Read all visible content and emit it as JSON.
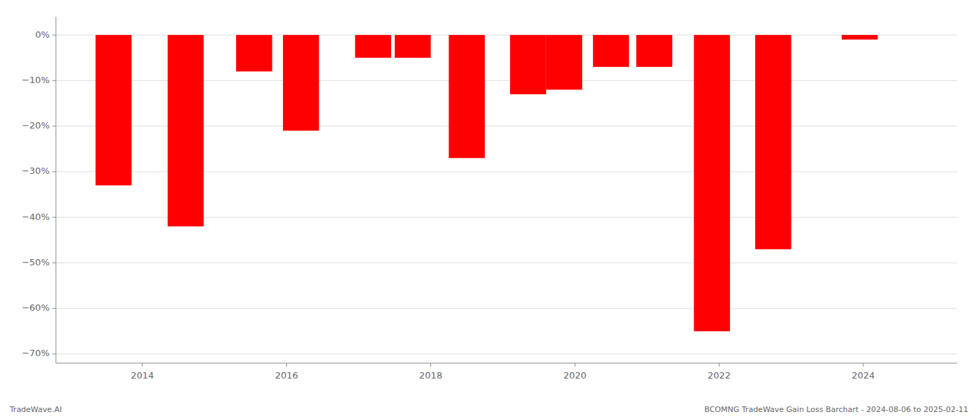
{
  "chart_data": {
    "type": "bar",
    "x": [
      2013.6,
      2014.6,
      2015.55,
      2016.2,
      2017.2,
      2017.75,
      2018.5,
      2019.35,
      2019.85,
      2020.5,
      2021.1,
      2021.9,
      2022.75,
      2023.95
    ],
    "values": [
      -33,
      -42,
      -8,
      -21,
      -5,
      -5,
      -27,
      -13,
      -12,
      -7,
      -7,
      -65,
      -47,
      -1
    ],
    "color": "#ff0000",
    "xlim": [
      2012.8,
      2025.3
    ],
    "xticks": [
      2014,
      2016,
      2018,
      2020,
      2022,
      2024
    ],
    "ylim": [
      -72,
      4
    ],
    "yticks": [
      {
        "value": 0,
        "label": "0%"
      },
      {
        "value": -10,
        "label": "−10%"
      },
      {
        "value": -20,
        "label": "−20%"
      },
      {
        "value": -30,
        "label": "−30%"
      },
      {
        "value": -40,
        "label": "−40%"
      },
      {
        "value": -50,
        "label": "−50%"
      },
      {
        "value": -60,
        "label": "−60%"
      },
      {
        "value": -70,
        "label": "−70%"
      }
    ],
    "grid": true,
    "annotations": [
      "TradeWave.AI",
      "BCOMNG TradeWave Gain Loss Barchart - 2024-08-06 to 2025-02-11"
    ]
  }
}
